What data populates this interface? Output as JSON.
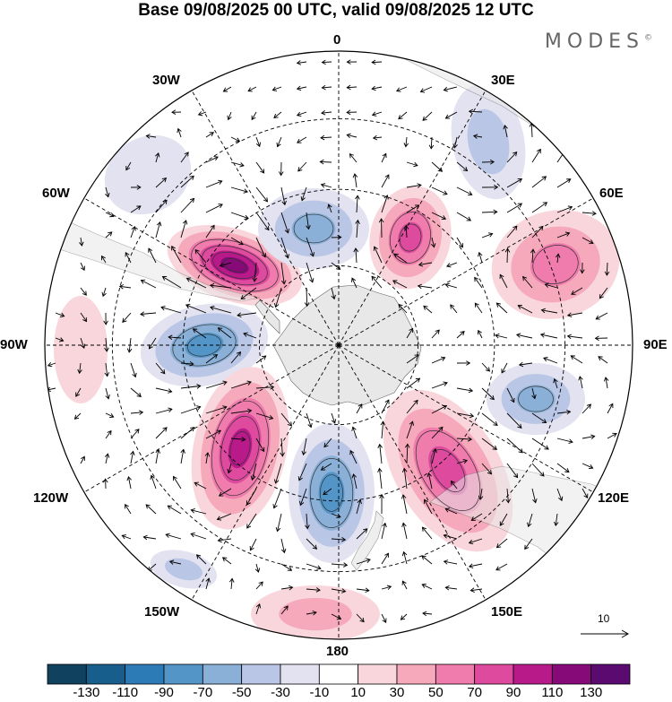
{
  "title": "Base 09/08/2025 00 UTC, valid 09/08/2025 12 UTC",
  "brand": "MODES",
  "brand_mark": "©",
  "longitude_labels": {
    "lon_0": "0",
    "lon_30e": "30E",
    "lon_60e": "60E",
    "lon_90e": "90E",
    "lon_120e": "120E",
    "lon_150e": "150E",
    "lon_180": "180",
    "lon_150w": "150W",
    "lon_120w": "120W",
    "lon_90w": "90W",
    "lon_60w": "60W",
    "lon_30w": "30W"
  },
  "vector_reference": "10",
  "colorbar": {
    "levels": [
      "-130",
      "-110",
      "-90",
      "-70",
      "-50",
      "-30",
      "-10",
      "10",
      "30",
      "50",
      "70",
      "90",
      "110",
      "130"
    ],
    "colors": [
      "#10415f",
      "#185e8c",
      "#2c7bb6",
      "#5495c8",
      "#8ab0d8",
      "#b9c6e5",
      "#e2e2f0",
      "#ffffff",
      "#f9d6dc",
      "#f5a9ba",
      "#ef7cac",
      "#de4a9e",
      "#b81a8a",
      "#860a78",
      "#5b0a6f"
    ]
  },
  "anomaly_centers": [
    {
      "name": "center-south-america-positive",
      "value": 125
    },
    {
      "name": "center-90w-negative",
      "value": -85
    },
    {
      "name": "center-120w-positive",
      "value": 95
    },
    {
      "name": "center-180-negative",
      "value": -70
    },
    {
      "name": "center-130e-positive",
      "value": 80
    },
    {
      "name": "center-100e-negative",
      "value": -55
    },
    {
      "name": "center-60e-positive",
      "value": 65
    },
    {
      "name": "center-20e-positive",
      "value": 75
    },
    {
      "name": "center-10w-negative",
      "value": -60
    },
    {
      "name": "center-30e-negative",
      "value": -45
    },
    {
      "name": "center-170e-positive",
      "value": 40
    },
    {
      "name": "center-145w-negative",
      "value": -30
    },
    {
      "name": "center-40w-negative",
      "value": -25
    },
    {
      "name": "center-95w-positive",
      "value": 25
    }
  ]
}
